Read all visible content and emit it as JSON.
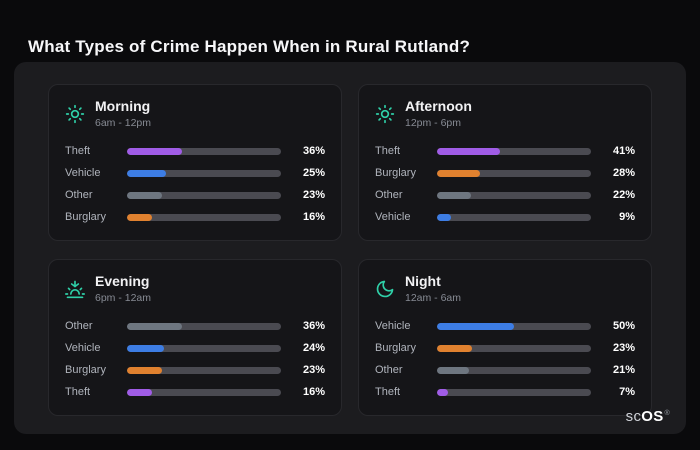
{
  "page": {
    "title": "What Types of Crime Happen When in Rural Rutland?"
  },
  "logo": {
    "prefix": "sc",
    "suffix": "OS",
    "registered": "®"
  },
  "accent_color": "#2fd0a8",
  "category_colors": {
    "Theft": "#a05ce6",
    "Vehicle": "#3d7de4",
    "Other": "#6e7680",
    "Burglary": "#e0812f"
  },
  "chart_data": [
    {
      "type": "bar",
      "orientation": "horizontal",
      "title": "Morning",
      "subtitle": "6am - 12pm",
      "icon": "sun-icon",
      "categories": [
        "Theft",
        "Vehicle",
        "Other",
        "Burglary"
      ],
      "values": [
        36,
        25,
        23,
        16
      ],
      "colors": [
        "#a05ce6",
        "#3d7de4",
        "#6e7680",
        "#e0812f"
      ],
      "unit": "%",
      "xlim": [
        0,
        100
      ]
    },
    {
      "type": "bar",
      "orientation": "horizontal",
      "title": "Afternoon",
      "subtitle": "12pm - 6pm",
      "icon": "sun-icon",
      "categories": [
        "Theft",
        "Burglary",
        "Other",
        "Vehicle"
      ],
      "values": [
        41,
        28,
        22,
        9
      ],
      "colors": [
        "#a05ce6",
        "#e0812f",
        "#6e7680",
        "#3d7de4"
      ],
      "unit": "%",
      "xlim": [
        0,
        100
      ]
    },
    {
      "type": "bar",
      "orientation": "horizontal",
      "title": "Evening",
      "subtitle": "6pm - 12am",
      "icon": "sunset-icon",
      "categories": [
        "Other",
        "Vehicle",
        "Burglary",
        "Theft"
      ],
      "values": [
        36,
        24,
        23,
        16
      ],
      "colors": [
        "#6e7680",
        "#3d7de4",
        "#e0812f",
        "#a05ce6"
      ],
      "unit": "%",
      "xlim": [
        0,
        100
      ]
    },
    {
      "type": "bar",
      "orientation": "horizontal",
      "title": "Night",
      "subtitle": "12am - 6am",
      "icon": "moon-icon",
      "categories": [
        "Vehicle",
        "Burglary",
        "Other",
        "Theft"
      ],
      "values": [
        50,
        23,
        21,
        7
      ],
      "colors": [
        "#3d7de4",
        "#e0812f",
        "#6e7680",
        "#a05ce6"
      ],
      "unit": "%",
      "xlim": [
        0,
        100
      ]
    }
  ]
}
